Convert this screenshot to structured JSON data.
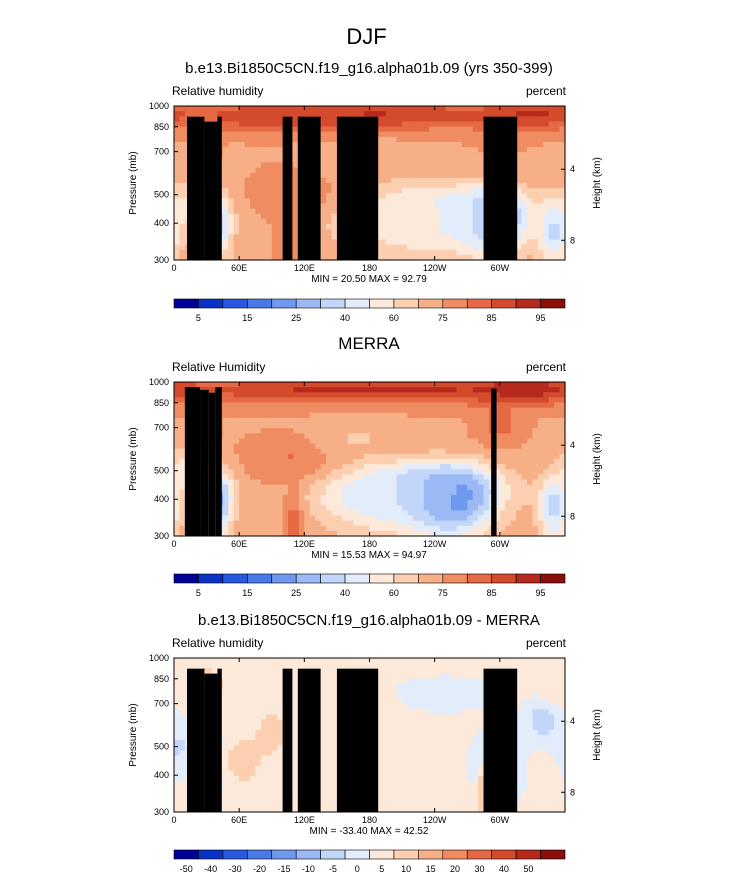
{
  "page": {
    "title": "DJF"
  },
  "colors": {
    "land_mask": "#000000",
    "frame": "#000000",
    "bg": "#ffffff"
  },
  "chart_data": [
    {
      "type": "heatmap",
      "title": "b.e13.Bi1850C5CN.f19_g16.alpha01b.09 (yrs 350-399)",
      "left_label": "Relative humidity",
      "right_label": "percent",
      "ylabel": "Pressure (mb)",
      "ylabel_right": "Height (km)",
      "x_ticks": [
        "0",
        "60E",
        "120E",
        "180",
        "120W",
        "60W"
      ],
      "y_ticks": [
        "300",
        "400",
        "500",
        "700",
        "850",
        "1000"
      ],
      "y_ticks_right": [
        "8",
        "4"
      ],
      "xlim_deg_east": [
        0,
        360
      ],
      "ylim_mb": [
        1000,
        300
      ],
      "stats": "MIN = 20.50  MAX = 92.79",
      "min": 20.5,
      "max": 92.79,
      "colorbar_labels": [
        "5",
        "15",
        "25",
        "40",
        "60",
        "75",
        "85",
        "95"
      ],
      "colorbar_colors": [
        "#000096",
        "#0a32c8",
        "#2858e0",
        "#4a7ae8",
        "#6f99ef",
        "#9bbaf5",
        "#c2d6f9",
        "#e2ecfb",
        "#fde9d9",
        "#fbcfb0",
        "#f7af88",
        "#f08c62",
        "#e56a44",
        "#d44a2c",
        "#b52a1c",
        "#8a0f0a"
      ],
      "blobs": [
        {
          "lon": 295,
          "p": 420,
          "v": 21,
          "s": 18
        },
        {
          "lon": 260,
          "p": 430,
          "v": 38,
          "s": 45
        },
        {
          "lon": 225,
          "p": 420,
          "v": 50,
          "s": 40
        },
        {
          "lon": 185,
          "p": 430,
          "v": 55,
          "s": 35
        },
        {
          "lon": 40,
          "p": 400,
          "v": 38,
          "s": 10
        },
        {
          "lon": 15,
          "p": 460,
          "v": 55,
          "s": 15
        },
        {
          "lon": 350,
          "p": 380,
          "v": 42,
          "s": 10
        },
        {
          "lon": 115,
          "p": 520,
          "v": 75,
          "s": 25
        },
        {
          "lon": 105,
          "p": 320,
          "v": 72,
          "s": 8
        },
        {
          "lon": 170,
          "p": 650,
          "v": 62,
          "s": 30
        },
        {
          "lon": 30,
          "p": 720,
          "v": 72,
          "s": 8
        },
        {
          "lon": 300,
          "p": 780,
          "v": 70,
          "s": 20
        },
        {
          "lon": 180,
          "p": 930,
          "v": 88,
          "s": 120
        },
        {
          "lon": 330,
          "p": 940,
          "v": 89,
          "s": 30
        },
        {
          "lon": 95,
          "p": 920,
          "v": 86,
          "s": 40
        }
      ],
      "land_columns": [
        {
          "lon_start": 12,
          "lon_end": 28,
          "p_top": 920
        },
        {
          "lon_start": 28,
          "lon_end": 40,
          "p_top": 885
        },
        {
          "lon_start": 40,
          "lon_end": 44,
          "p_top": 920
        },
        {
          "lon_start": 100,
          "lon_end": 109,
          "p_top": 920
        },
        {
          "lon_start": 114,
          "lon_end": 135,
          "p_top": 920
        },
        {
          "lon_start": 150,
          "lon_end": 188,
          "p_top": 920
        },
        {
          "lon_start": 285,
          "lon_end": 316,
          "p_top": 920
        }
      ]
    },
    {
      "type": "heatmap",
      "title": "MERRA",
      "left_label": "Relative Humidity",
      "right_label": "percent",
      "ylabel": "Pressure (mb)",
      "ylabel_right": "Height (km)",
      "x_ticks": [
        "0",
        "60E",
        "120E",
        "180",
        "120W",
        "60W"
      ],
      "y_ticks": [
        "300",
        "400",
        "500",
        "700",
        "850",
        "1000"
      ],
      "y_ticks_right": [
        "8",
        "4"
      ],
      "xlim_deg_east": [
        0,
        360
      ],
      "ylim_mb": [
        1000,
        300
      ],
      "stats": "MIN = 15.53  MAX = 94.97",
      "min": 15.53,
      "max": 94.97,
      "colorbar_labels": [
        "5",
        "15",
        "25",
        "40",
        "60",
        "75",
        "85",
        "95"
      ],
      "colorbar_colors": [
        "#000096",
        "#0a32c8",
        "#2858e0",
        "#4a7ae8",
        "#6f99ef",
        "#9bbaf5",
        "#c2d6f9",
        "#e2ecfb",
        "#fde9d9",
        "#fbcfb0",
        "#f7af88",
        "#f08c62",
        "#e56a44",
        "#d44a2c",
        "#b52a1c",
        "#8a0f0a"
      ],
      "blobs": [
        {
          "lon": 255,
          "p": 410,
          "v": 18,
          "s": 25
        },
        {
          "lon": 230,
          "p": 430,
          "v": 30,
          "s": 45
        },
        {
          "lon": 185,
          "p": 420,
          "v": 45,
          "s": 40
        },
        {
          "lon": 40,
          "p": 400,
          "v": 28,
          "s": 10
        },
        {
          "lon": 15,
          "p": 500,
          "v": 52,
          "s": 15
        },
        {
          "lon": 350,
          "p": 380,
          "v": 40,
          "s": 10
        },
        {
          "lon": 112,
          "p": 560,
          "v": 76,
          "s": 28
        },
        {
          "lon": 110,
          "p": 330,
          "v": 78,
          "s": 6
        },
        {
          "lon": 300,
          "p": 720,
          "v": 78,
          "s": 14
        },
        {
          "lon": 30,
          "p": 680,
          "v": 72,
          "s": 8
        },
        {
          "lon": 170,
          "p": 640,
          "v": 62,
          "s": 30
        },
        {
          "lon": 180,
          "p": 940,
          "v": 90,
          "s": 140
        },
        {
          "lon": 325,
          "p": 950,
          "v": 91,
          "s": 35
        }
      ],
      "land_columns": [
        {
          "lon_start": 10,
          "lon_end": 24,
          "p_top": 960
        },
        {
          "lon_start": 24,
          "lon_end": 32,
          "p_top": 940
        },
        {
          "lon_start": 32,
          "lon_end": 38,
          "p_top": 920
        },
        {
          "lon_start": 38,
          "lon_end": 44,
          "p_top": 960
        },
        {
          "lon_start": 292,
          "lon_end": 297,
          "p_top": 950
        }
      ]
    },
    {
      "type": "heatmap",
      "title": "b.e13.Bi1850C5CN.f19_g16.alpha01b.09 - MERRA",
      "left_label": "Relative humidity",
      "right_label": "percent",
      "ylabel": "Pressure (mb)",
      "ylabel_right": "Height (km)",
      "x_ticks": [
        "0",
        "60E",
        "120E",
        "180",
        "120W",
        "60W"
      ],
      "y_ticks": [
        "300",
        "400",
        "500",
        "700",
        "850",
        "1000"
      ],
      "y_ticks_right": [
        "8",
        "4"
      ],
      "xlim_deg_east": [
        0,
        360
      ],
      "ylim_mb": [
        1000,
        300
      ],
      "stats": "MIN = -33.40  MAX = 42.52",
      "min": -33.4,
      "max": 42.52,
      "colorbar_labels": [
        "-50",
        "-40",
        "-30",
        "-20",
        "-15",
        "-10",
        "-5",
        "0",
        "5",
        "10",
        "15",
        "20",
        "30",
        "40",
        "50"
      ],
      "colorbar_colors": [
        "#000096",
        "#0a32c8",
        "#2858e0",
        "#4a7ae8",
        "#6f99ef",
        "#9bbaf5",
        "#c2d6f9",
        "#e2ecfb",
        "#fde9d9",
        "#fbcfb0",
        "#f7af88",
        "#f08c62",
        "#e56a44",
        "#d44a2c",
        "#b52a1c",
        "#8a0f0a"
      ],
      "blobs": [
        {
          "lon": 298,
          "p": 440,
          "v": -30,
          "s": 12
        },
        {
          "lon": 290,
          "p": 360,
          "v": 30,
          "s": 6
        },
        {
          "lon": 340,
          "p": 620,
          "v": -12,
          "s": 12
        },
        {
          "lon": 40,
          "p": 450,
          "v": -12,
          "s": 10
        },
        {
          "lon": 5,
          "p": 500,
          "v": -8,
          "s": 8
        },
        {
          "lon": 60,
          "p": 450,
          "v": 10,
          "s": 18
        },
        {
          "lon": 130,
          "p": 600,
          "v": 7,
          "s": 20
        },
        {
          "lon": 30,
          "p": 820,
          "v": 14,
          "s": 10
        },
        {
          "lon": 90,
          "p": 560,
          "v": 10,
          "s": 12
        },
        {
          "lon": 200,
          "p": 500,
          "v": 5,
          "s": 30
        },
        {
          "lon": 250,
          "p": 760,
          "v": -5,
          "s": 30
        },
        {
          "lon": 355,
          "p": 800,
          "v": 7,
          "s": 10
        }
      ],
      "land_columns": [
        {
          "lon_start": 12,
          "lon_end": 28,
          "p_top": 920
        },
        {
          "lon_start": 28,
          "lon_end": 40,
          "p_top": 885
        },
        {
          "lon_start": 40,
          "lon_end": 44,
          "p_top": 920
        },
        {
          "lon_start": 100,
          "lon_end": 109,
          "p_top": 920
        },
        {
          "lon_start": 114,
          "lon_end": 135,
          "p_top": 920
        },
        {
          "lon_start": 150,
          "lon_end": 188,
          "p_top": 920
        },
        {
          "lon_start": 285,
          "lon_end": 316,
          "p_top": 920
        }
      ]
    }
  ]
}
